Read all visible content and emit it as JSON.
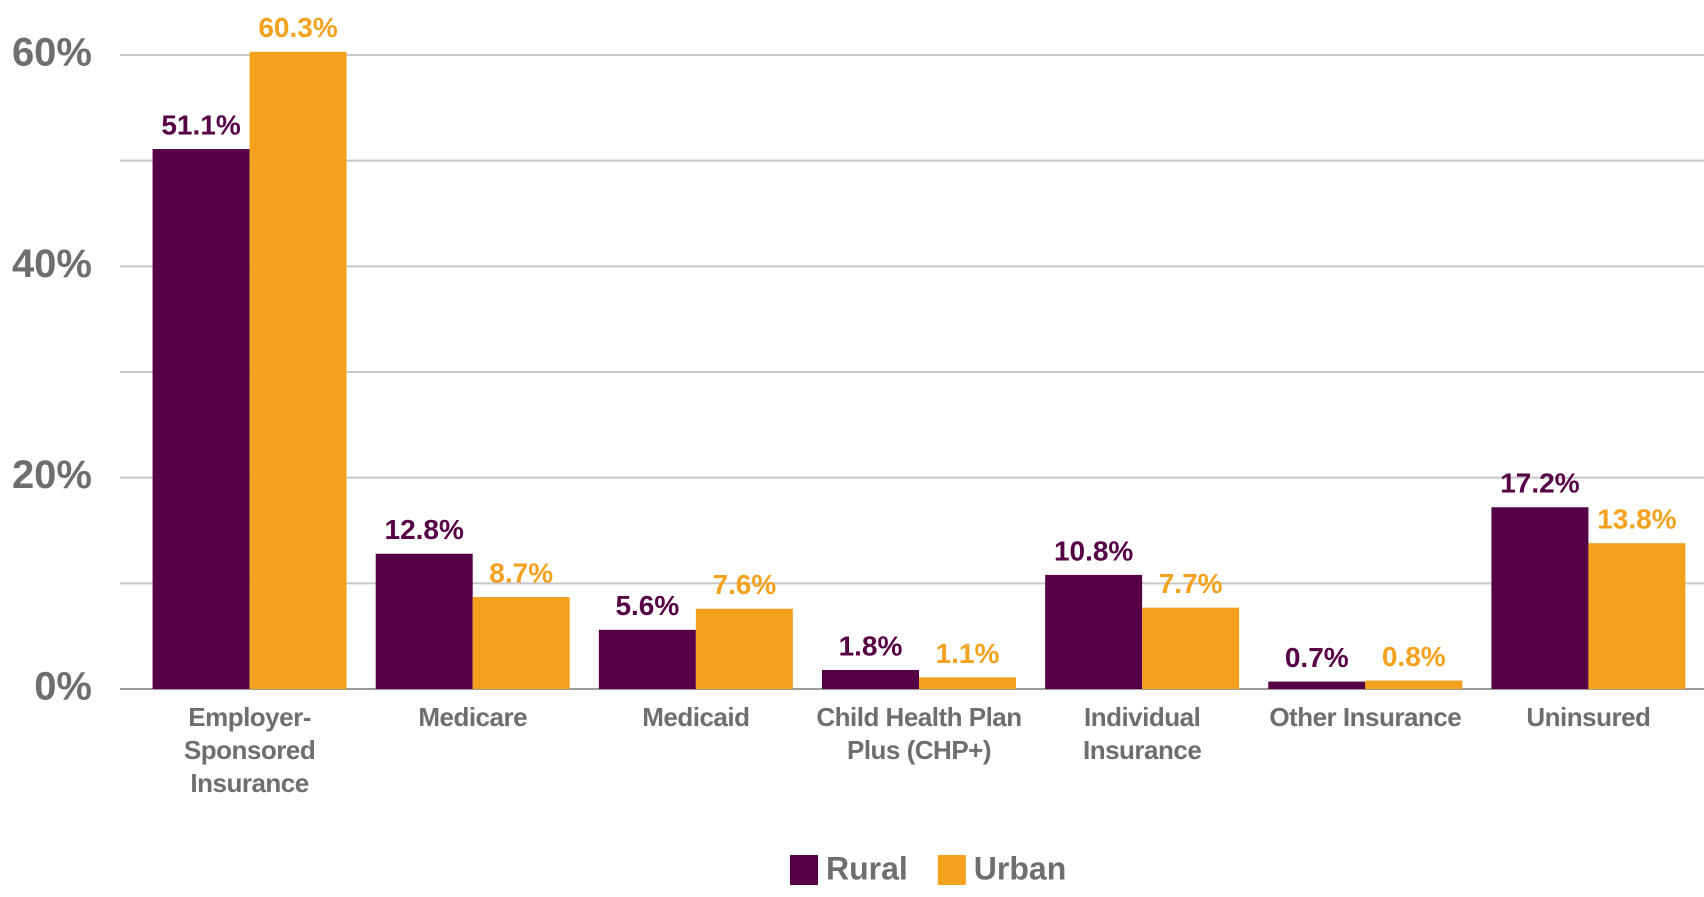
{
  "chart_data": {
    "type": "bar",
    "categories": [
      "Employer-Sponsored Insurance",
      "Medicare",
      "Medicaid",
      "Child Health Plan Plus (CHP+)",
      "Individual Insurance",
      "Other Insurance",
      "Uninsured"
    ],
    "series": [
      {
        "name": "Rural",
        "color": "#560046",
        "values": [
          51.1,
          12.8,
          5.6,
          1.8,
          10.8,
          0.7,
          17.2
        ],
        "value_labels": [
          "51.1%",
          "12.8%",
          "5.6%",
          "1.8%",
          "10.8%",
          "0.7%",
          "17.2%"
        ]
      },
      {
        "name": "Urban",
        "color": "#f4a11e",
        "values": [
          60.3,
          8.7,
          7.6,
          1.1,
          7.7,
          0.8,
          13.8
        ],
        "value_labels": [
          "60.3%",
          "8.7%",
          "7.6%",
          "1.1%",
          "7.7%",
          "0.8%",
          "13.8%"
        ]
      }
    ],
    "ylim": [
      0,
      60
    ],
    "yticks": [
      {
        "value": 0,
        "label": "0%"
      },
      {
        "value": 20,
        "label": "20%"
      },
      {
        "value": 40,
        "label": "40%"
      },
      {
        "value": 60,
        "label": "60%"
      }
    ],
    "minor_yticks": [
      10,
      30,
      50
    ],
    "grid": true,
    "legend": "bottom"
  }
}
